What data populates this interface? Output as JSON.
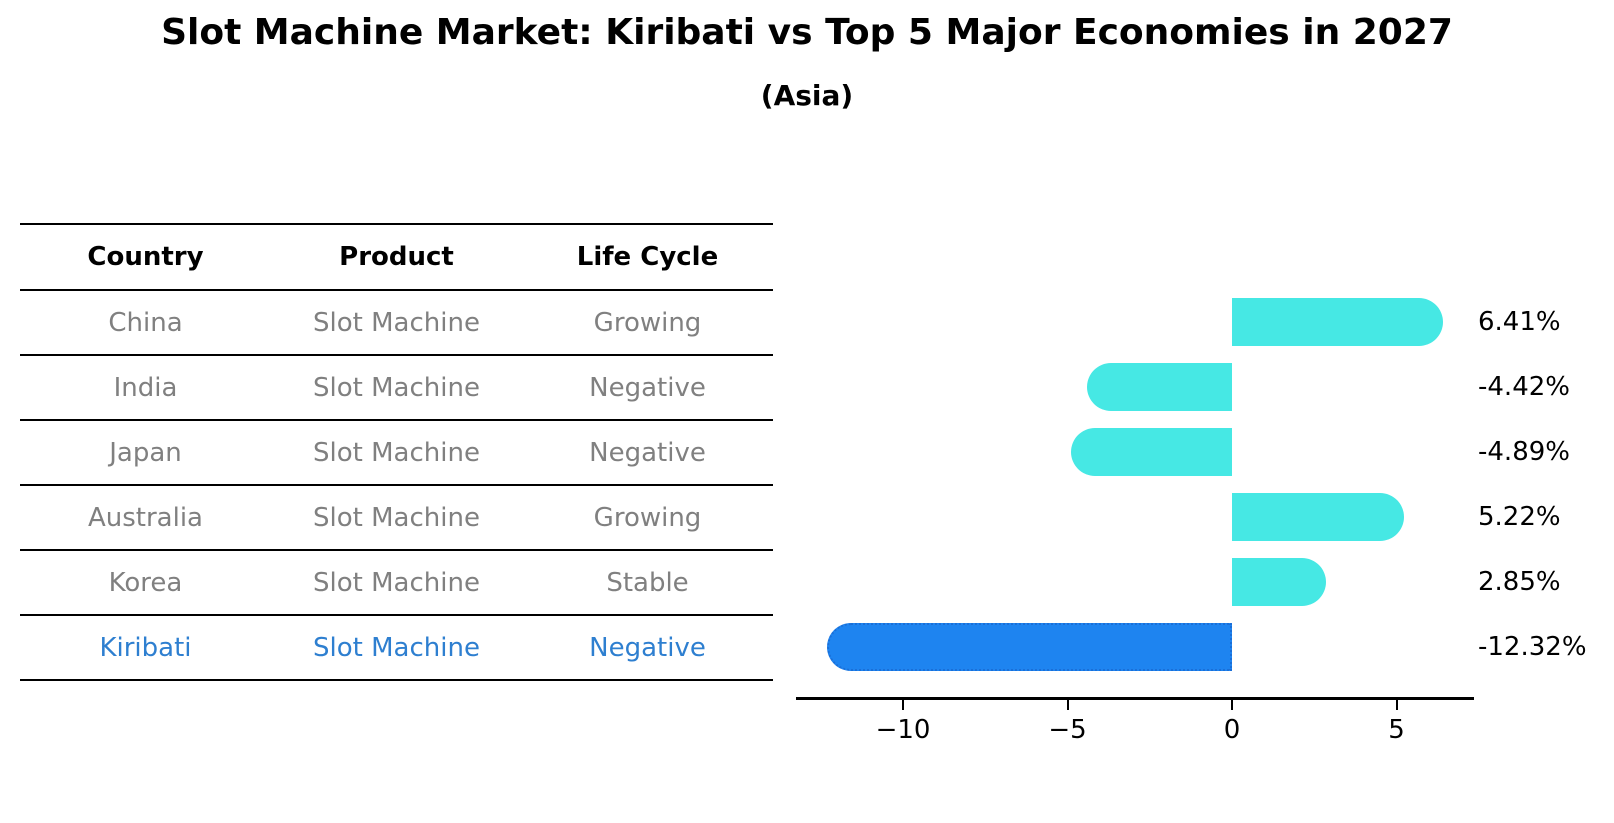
{
  "title": "Slot Machine Market: Kiribati vs Top 5 Major Economies in 2027",
  "subtitle": "(Asia)",
  "table": {
    "headers": [
      "Country",
      "Product",
      "Life Cycle"
    ],
    "rows": [
      {
        "country": "China",
        "product": "Slot Machine",
        "life_cycle": "Growing",
        "highlight": false
      },
      {
        "country": "India",
        "product": "Slot Machine",
        "life_cycle": "Negative",
        "highlight": false
      },
      {
        "country": "Japan",
        "product": "Slot Machine",
        "life_cycle": "Negative",
        "highlight": false
      },
      {
        "country": "Australia",
        "product": "Slot Machine",
        "life_cycle": "Growing",
        "highlight": false
      },
      {
        "country": "Korea",
        "product": "Slot Machine",
        "life_cycle": "Stable",
        "highlight": false
      },
      {
        "country": "Kiribati",
        "product": "Slot Machine",
        "life_cycle": "Negative",
        "highlight": true
      }
    ]
  },
  "chart_data": {
    "type": "bar",
    "orientation": "horizontal",
    "title": "Slot Machine Market: Kiribati vs Top 5 Major Economies in 2027",
    "subtitle": "(Asia)",
    "categories": [
      "China",
      "India",
      "Japan",
      "Australia",
      "Korea",
      "Kiribati"
    ],
    "values": [
      6.41,
      -4.42,
      -4.89,
      5.22,
      2.85,
      -12.32
    ],
    "value_labels": [
      "6.41%",
      "-4.42%",
      "-4.89%",
      "5.22%",
      "2.85%",
      "-12.32%"
    ],
    "xlim": [
      -13.26,
      7.35
    ],
    "xticks": [
      -10,
      -5,
      0,
      5
    ],
    "xtick_labels": [
      "−10",
      "−5",
      "0",
      "5"
    ],
    "grid": false,
    "legend": false,
    "bar_color": "#46E8E4",
    "highlight_color": "#1E84F0",
    "highlight_border_color": "#1A6FD8",
    "highlight_index": 5
  },
  "colors": {
    "title_text": "#000000",
    "row_text": "#808080",
    "highlight_text": "#2E7FD0",
    "axis": "#000000"
  }
}
